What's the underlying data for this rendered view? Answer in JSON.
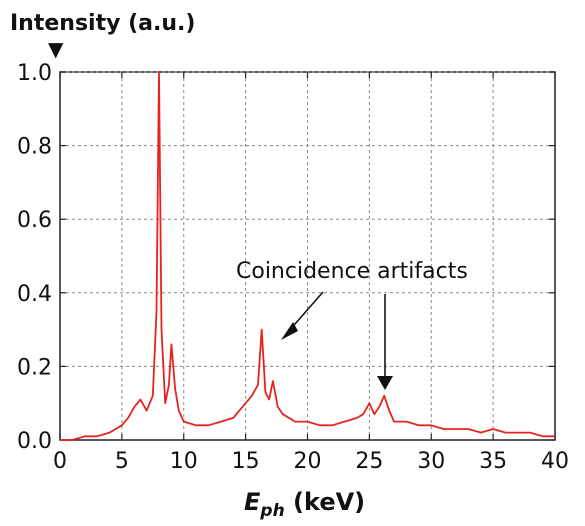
{
  "chart_data": {
    "type": "line",
    "title": "",
    "ylabel": "Intensity (a.u.)",
    "xlabel": {
      "base": "E",
      "subscript": "ph",
      "unit": " (keV)"
    },
    "xlim": [
      0,
      40
    ],
    "ylim": [
      0,
      1.0
    ],
    "x_ticks": [
      0,
      5,
      10,
      15,
      20,
      25,
      30,
      35,
      40
    ],
    "x_tick_labels": [
      "0",
      "5",
      "10",
      "15",
      "20",
      "25",
      "30",
      "35",
      "40"
    ],
    "y_ticks": [
      0.0,
      0.2,
      0.4,
      0.6,
      0.8,
      1.0
    ],
    "y_tick_labels": [
      "0.0",
      "0.2",
      "0.4",
      "0.6",
      "0.8",
      "1.0"
    ],
    "grid": true,
    "series": [
      {
        "color": "#e8231f",
        "x": [
          0,
          1,
          2,
          3,
          4,
          5,
          5.5,
          6,
          6.5,
          7,
          7.5,
          7.8,
          8.0,
          8.2,
          8.5,
          8.8,
          9.0,
          9.3,
          9.6,
          10,
          11,
          12,
          13,
          14,
          14.5,
          15,
          15.5,
          16,
          16.3,
          16.6,
          16.9,
          17.2,
          17.6,
          18,
          19,
          20,
          21,
          22,
          23,
          24,
          24.5,
          25,
          25.4,
          25.8,
          26.2,
          26.6,
          27,
          28,
          29,
          30,
          31,
          32,
          33,
          34,
          35,
          36,
          37,
          38,
          39,
          40
        ],
        "values": [
          0.0,
          0.0,
          0.01,
          0.01,
          0.02,
          0.04,
          0.06,
          0.09,
          0.11,
          0.08,
          0.12,
          0.35,
          1.0,
          0.3,
          0.1,
          0.15,
          0.26,
          0.14,
          0.08,
          0.05,
          0.04,
          0.04,
          0.05,
          0.06,
          0.08,
          0.1,
          0.12,
          0.15,
          0.3,
          0.13,
          0.11,
          0.16,
          0.09,
          0.07,
          0.05,
          0.05,
          0.04,
          0.04,
          0.05,
          0.06,
          0.07,
          0.1,
          0.07,
          0.09,
          0.12,
          0.08,
          0.05,
          0.05,
          0.04,
          0.04,
          0.03,
          0.03,
          0.03,
          0.02,
          0.03,
          0.02,
          0.02,
          0.02,
          0.01,
          0.01
        ]
      }
    ],
    "annotations": [
      {
        "text": "Coincidence artifacts"
      }
    ],
    "marker_symbol": "▼"
  }
}
